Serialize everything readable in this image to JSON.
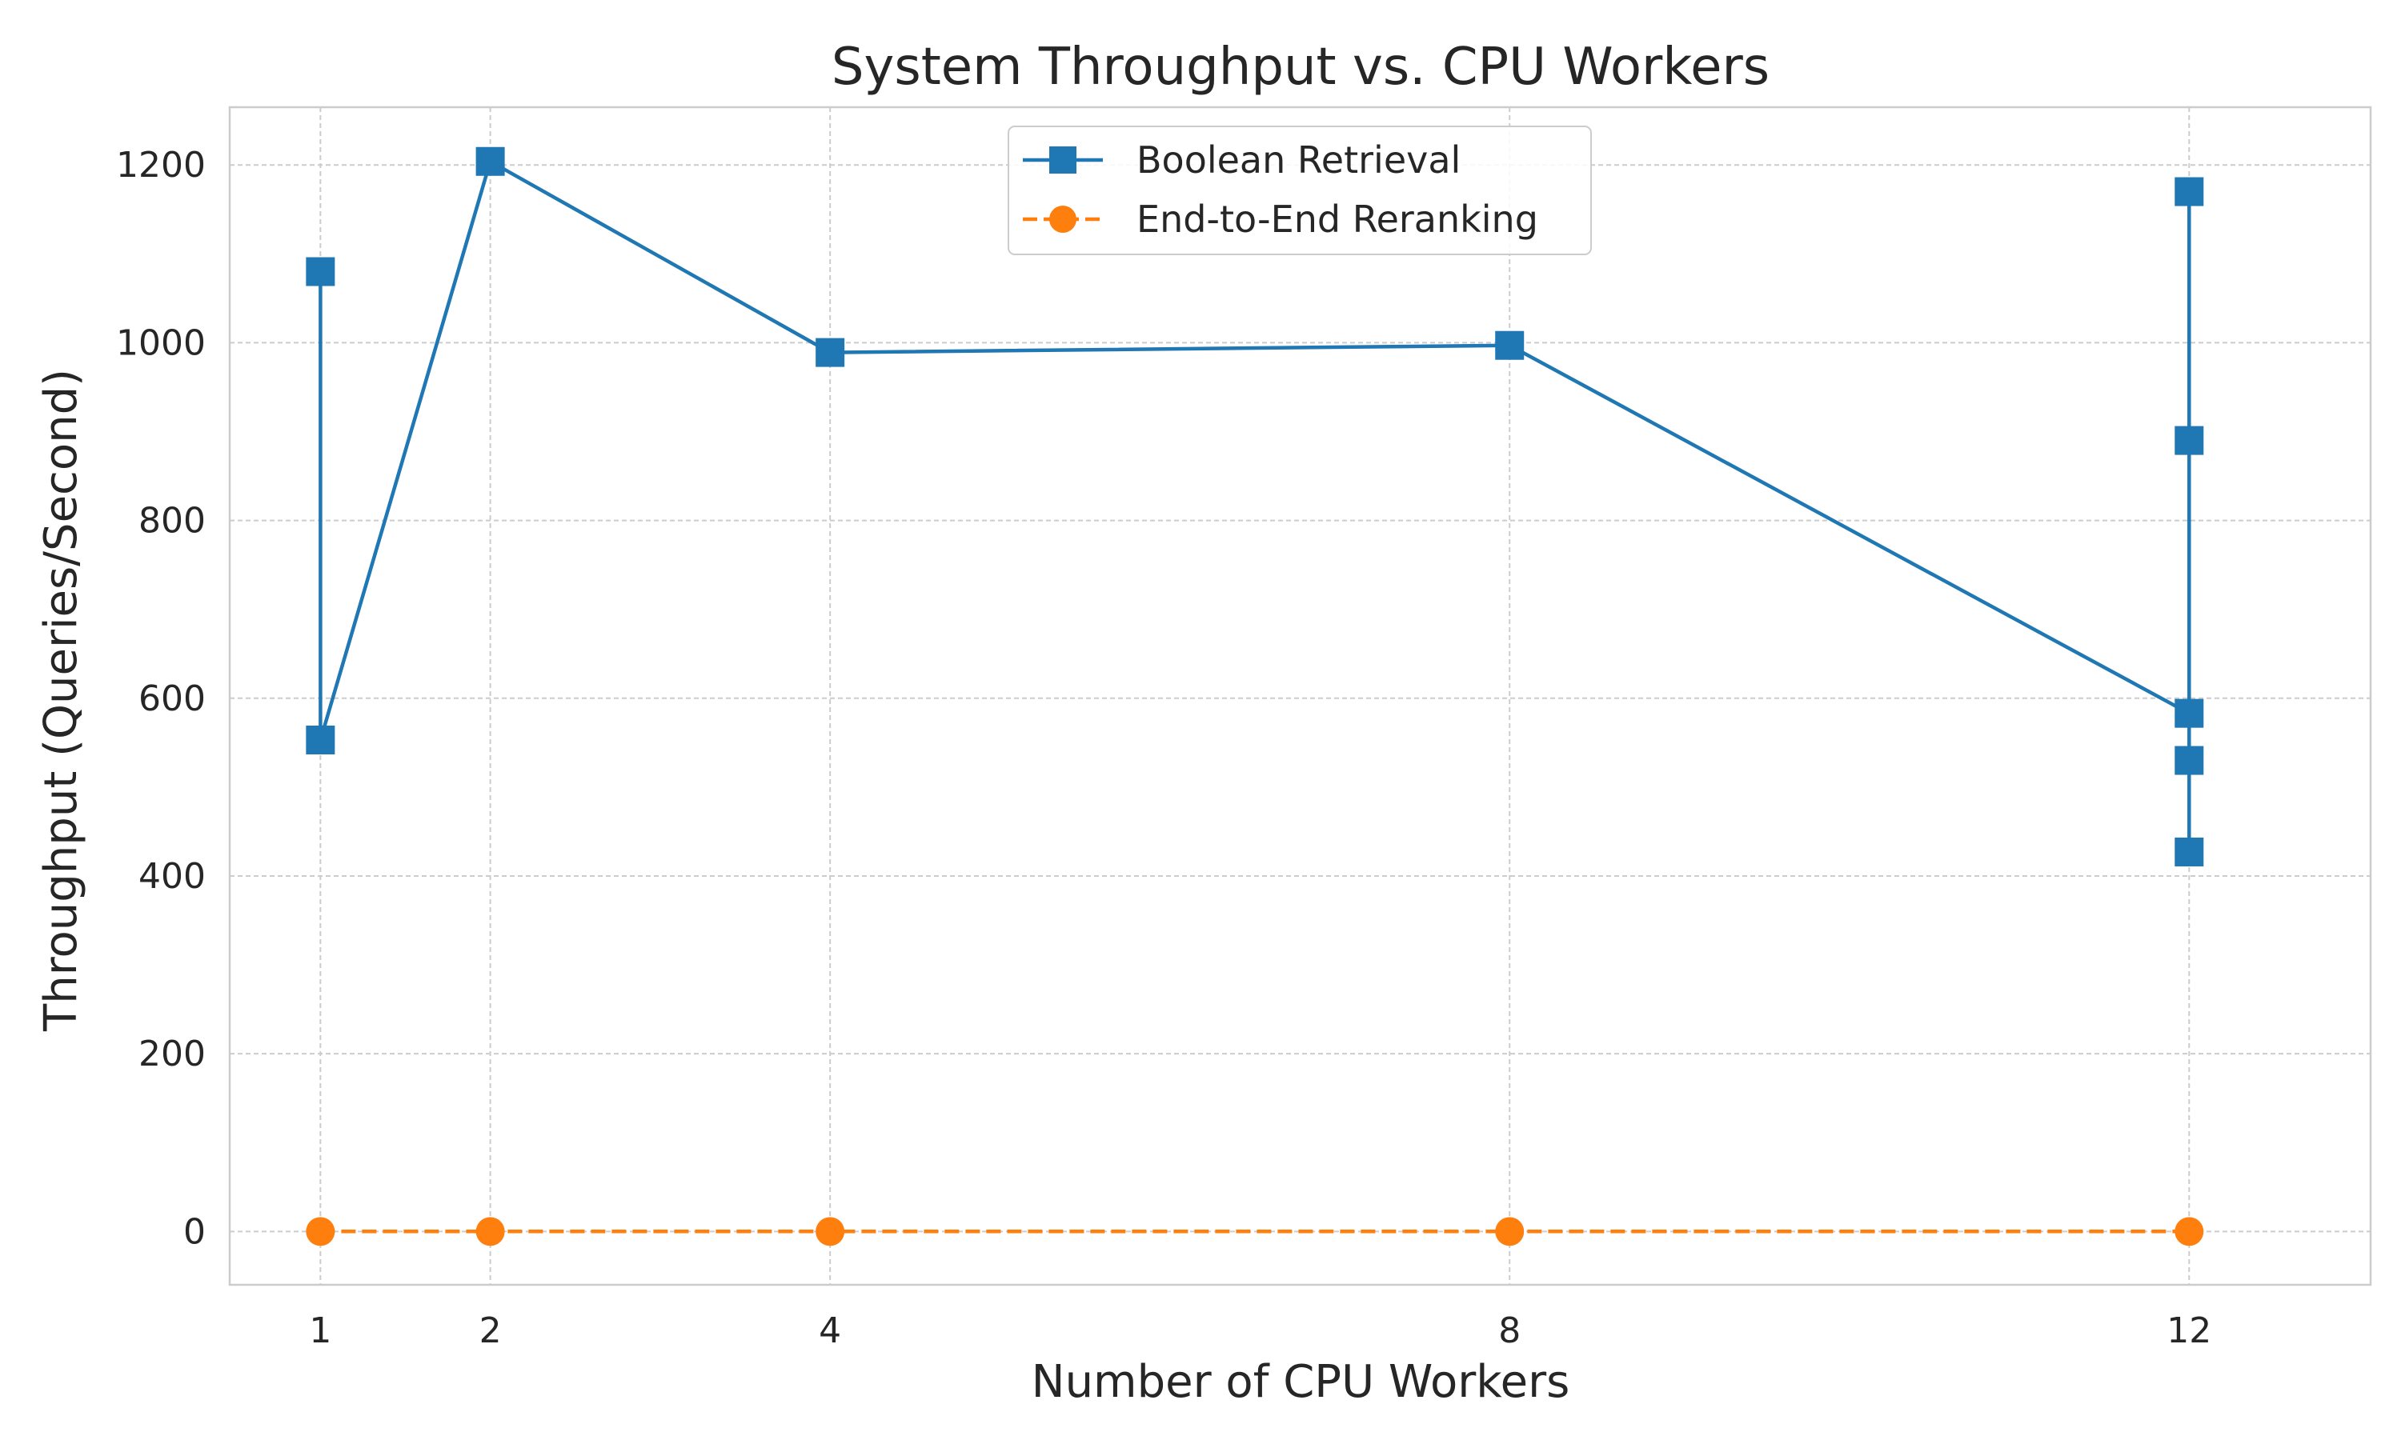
{
  "chart_data": {
    "type": "line",
    "title": "System Throughput vs. CPU Workers",
    "xlabel": "Number of CPU Workers",
    "ylabel": "Throughput (Queries/Second)",
    "xlim": [
      0.466,
      13.068
    ],
    "ylim": [
      -60,
      1265
    ],
    "xticks": [
      1,
      2,
      4,
      8,
      12
    ],
    "xtick_labels": [
      "1",
      "2",
      "4",
      "8",
      "12"
    ],
    "yticks": [
      0,
      200,
      400,
      600,
      800,
      1000,
      1200
    ],
    "ytick_labels": [
      "0",
      "200",
      "400",
      "600",
      "800",
      "1000",
      "1200"
    ],
    "grid": true,
    "legend_position": "upper-center",
    "series": [
      {
        "name": "Boolean Retrieval",
        "color": "#1f77b4",
        "marker": "square",
        "linestyle": "solid",
        "x": [
          1,
          1,
          2,
          4,
          8,
          12,
          12,
          12,
          12,
          12
        ],
        "y": [
          1080,
          553,
          1204,
          989,
          997,
          583,
          427,
          530,
          890,
          1170
        ]
      },
      {
        "name": "End-to-End Reranking",
        "color": "#ff7f0e",
        "marker": "circle",
        "linestyle": "dashed",
        "x": [
          1,
          2,
          4,
          8,
          12
        ],
        "y": [
          0,
          0,
          0,
          0,
          0
        ]
      }
    ]
  }
}
